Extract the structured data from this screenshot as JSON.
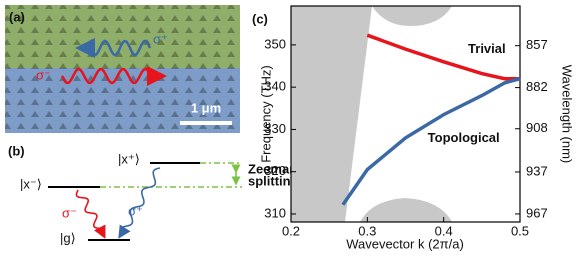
{
  "panel_a": {
    "label": "(a)",
    "sigma_plus": "σ⁺",
    "sigma_minus": "σ⁻",
    "scale_bar": "1 μm"
  },
  "panel_b": {
    "label": "(b)",
    "levels": [
      "|x⁺⟩",
      "|x⁻⟩",
      "|g⟩"
    ],
    "zeeman": [
      "Zeeman",
      "splitting"
    ],
    "sigma_minus": "σ⁻",
    "sigma_plus": "σ⁺"
  },
  "chart_data": {
    "type": "line",
    "panel_label": "(c)",
    "xlabel": "Wavevector k (2π/a)",
    "ylabel": "Frequency (THz)",
    "y2label": "Wavelength (nm)",
    "xlim": [
      0.2,
      0.5
    ],
    "xticks": [
      0.2,
      0.3,
      0.4,
      0.5
    ],
    "ylim": [
      308.1,
      359.2
    ],
    "yticks": [
      310,
      320,
      330,
      340,
      350
    ],
    "y2scale": "reciprocal",
    "y2lim": [
      973.0,
      834.6
    ],
    "y2ticks": [
      857,
      882,
      908,
      937,
      967
    ],
    "series": [
      {
        "name": "Trivial",
        "color": "#e8141c",
        "x": [
          0.3,
          0.35,
          0.4,
          0.45,
          0.48,
          0.5
        ],
        "values": [
          352.3,
          349,
          346,
          343.2,
          342,
          342
        ]
      },
      {
        "name": "Topological",
        "color": "#3a69a6",
        "x": [
          0.268,
          0.3,
          0.35,
          0.4,
          0.45,
          0.48,
          0.5
        ],
        "values": [
          312.2,
          320.5,
          328,
          333.5,
          338,
          341,
          342
        ]
      }
    ]
  }
}
